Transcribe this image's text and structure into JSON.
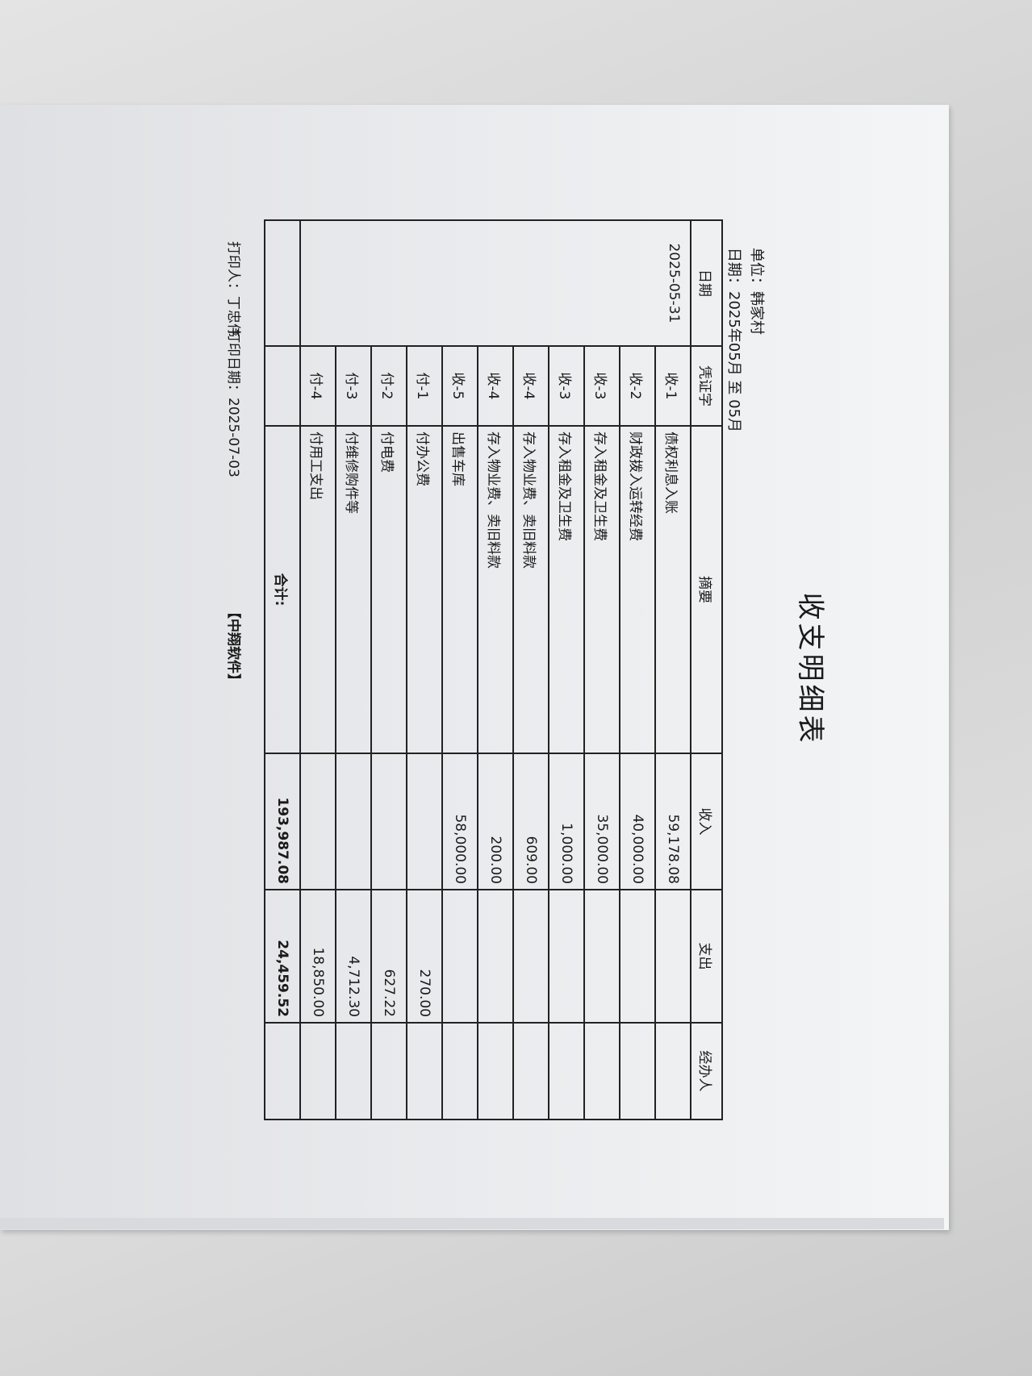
{
  "title": "收支明细表",
  "unit": "单位：韩家村",
  "period": "日期：2025年05月 至 05月",
  "columns": [
    "日期",
    "凭证字",
    "摘要",
    "收入",
    "支出",
    "经办人"
  ],
  "date": "2025-05-31",
  "rows": [
    {
      "voucher": "收-1",
      "summary": "债权利息入账",
      "income": "59,178.08",
      "expense": ""
    },
    {
      "voucher": "收-2",
      "summary": "财政拨入运转经费",
      "income": "40,000.00",
      "expense": ""
    },
    {
      "voucher": "收-3",
      "summary": "存入租金及卫生费",
      "income": "35,000.00",
      "expense": ""
    },
    {
      "voucher": "收-3",
      "summary": "存入租金及卫生费",
      "income": "1,000.00",
      "expense": ""
    },
    {
      "voucher": "收-4",
      "summary": "存入物业费、卖旧料款",
      "income": "609.00",
      "expense": ""
    },
    {
      "voucher": "收-4",
      "summary": "存入物业费、卖旧料款",
      "income": "200.00",
      "expense": ""
    },
    {
      "voucher": "收-5",
      "summary": "出售车库",
      "income": "58,000.00",
      "expense": ""
    },
    {
      "voucher": "付-1",
      "summary": "付办公费",
      "income": "",
      "expense": "270.00"
    },
    {
      "voucher": "付-2",
      "summary": "付电费",
      "income": "",
      "expense": "627.22"
    },
    {
      "voucher": "付-3",
      "summary": "付维修购件等",
      "income": "",
      "expense": "4,712.30"
    },
    {
      "voucher": "付-4",
      "summary": "付用工支出",
      "income": "",
      "expense": "18,850.00"
    }
  ],
  "total": {
    "label": "合计:",
    "income": "193,987.08",
    "expense": "24,459.52"
  },
  "footer": {
    "printer": "打印人：丁忠伟",
    "print_date": "打印日期：2025-07-03",
    "software": "【中翔软件】"
  }
}
